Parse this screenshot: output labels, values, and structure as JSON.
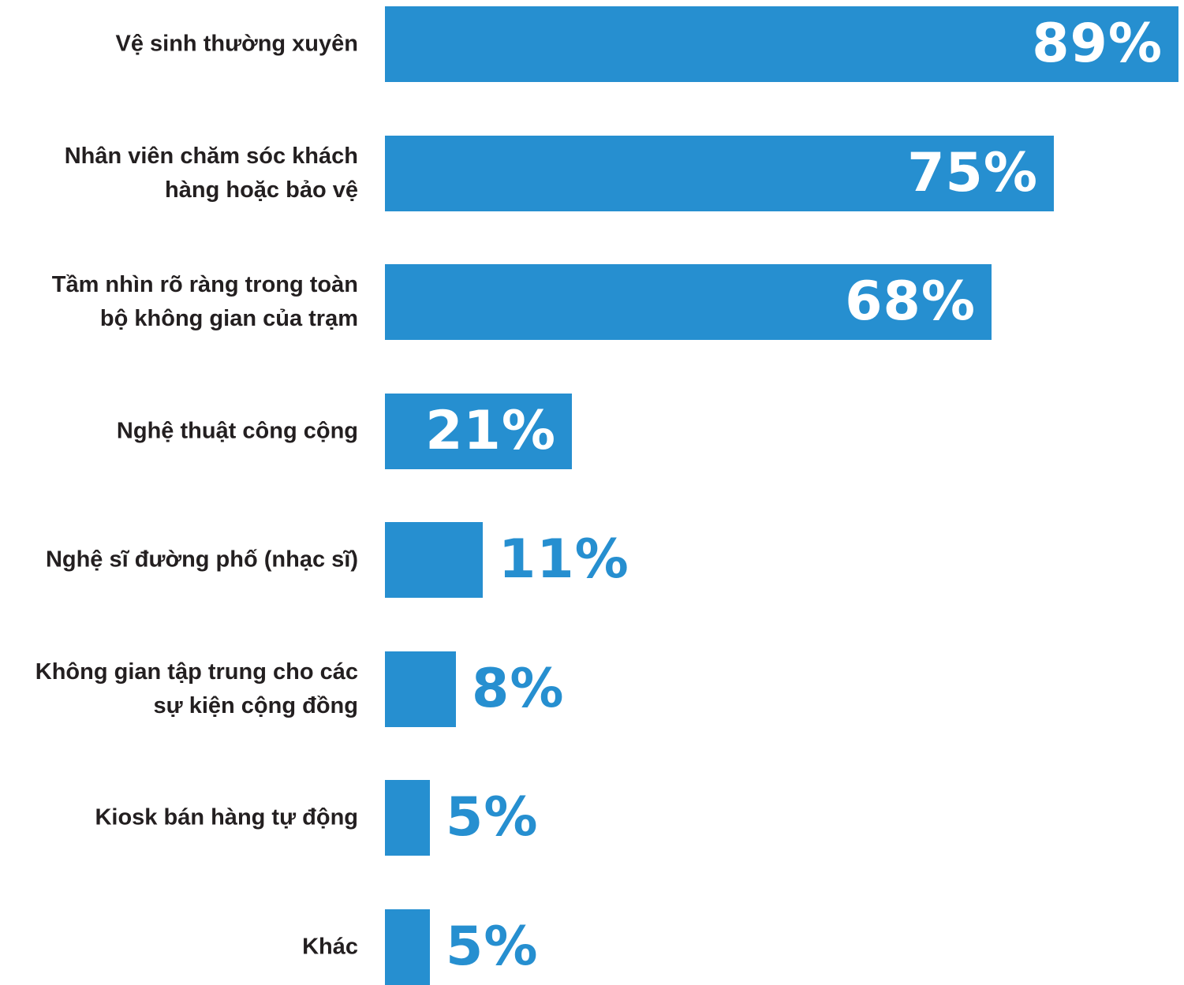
{
  "chart_data": {
    "type": "bar",
    "orientation": "horizontal",
    "categories": [
      "Vệ sinh thường xuyên",
      "Nhân viên chăm sóc khách hàng hoặc bảo vệ",
      "Tầm nhìn rõ ràng trong toàn bộ không gian của trạm",
      "Nghệ thuật công cộng",
      "Nghệ sĩ đường phố (nhạc sĩ)",
      "Không gian tập trung cho các sự kiện cộng đồng",
      "Kiosk bán hàng tự động",
      "Khác"
    ],
    "category_lines": [
      [
        "Vệ sinh thường xuyên"
      ],
      [
        "Nhân viên chăm sóc khách",
        "hàng hoặc bảo vệ"
      ],
      [
        "Tầm nhìn rõ ràng trong toàn",
        "bộ không gian của trạm"
      ],
      [
        "Nghệ thuật công cộng"
      ],
      [
        "Nghệ sĩ đường phố (nhạc sĩ)"
      ],
      [
        "Không gian tập trung cho các",
        "sự kiện cộng đồng"
      ],
      [
        "Kiosk bán hàng tự động"
      ],
      [
        "Khác"
      ]
    ],
    "values": [
      89,
      75,
      68,
      21,
      11,
      8,
      5,
      5
    ],
    "value_labels": [
      "89%",
      "75%",
      "68%",
      "21%",
      "11%",
      "8%",
      "5%",
      "5%"
    ],
    "unit": "%",
    "xlim": [
      0,
      100
    ],
    "grid": false,
    "legend": "none",
    "colors": {
      "bar": "#268fd0",
      "label_text": "#231f20",
      "value_inside": "#ffffff",
      "value_outside": "#268fd0"
    }
  }
}
